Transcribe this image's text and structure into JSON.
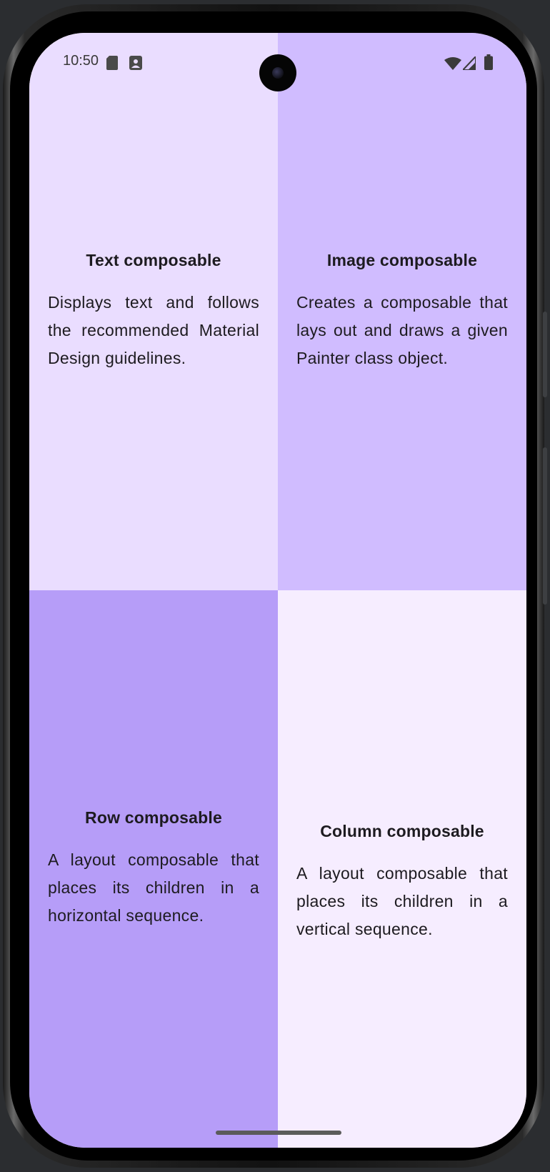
{
  "status_bar": {
    "time": "10:50",
    "left_icons": [
      "sd-card-icon",
      "portrait-icon"
    ],
    "right_icons": [
      "wifi-icon",
      "cell-signal-icon",
      "battery-icon"
    ]
  },
  "quadrants": [
    {
      "title": "Text composable",
      "description": "Displays text and follows the recommended Material Design guidelines.",
      "background": "#EADDFF"
    },
    {
      "title": "Image composable",
      "description": "Creates a composable that lays out and draws a given Painter class object.",
      "background": "#D0BCFF"
    },
    {
      "title": "Row composable",
      "description": "A layout composable that places its children in a horizontal sequence.",
      "background": "#B69DF8"
    },
    {
      "title": "Column composable",
      "description": "A layout composable that places its children in a vertical sequence.",
      "background": "#F6EDFF"
    }
  ],
  "colors": {
    "text": "#1D1B20",
    "device_frame": "#000000",
    "background": "#2B2D30"
  }
}
